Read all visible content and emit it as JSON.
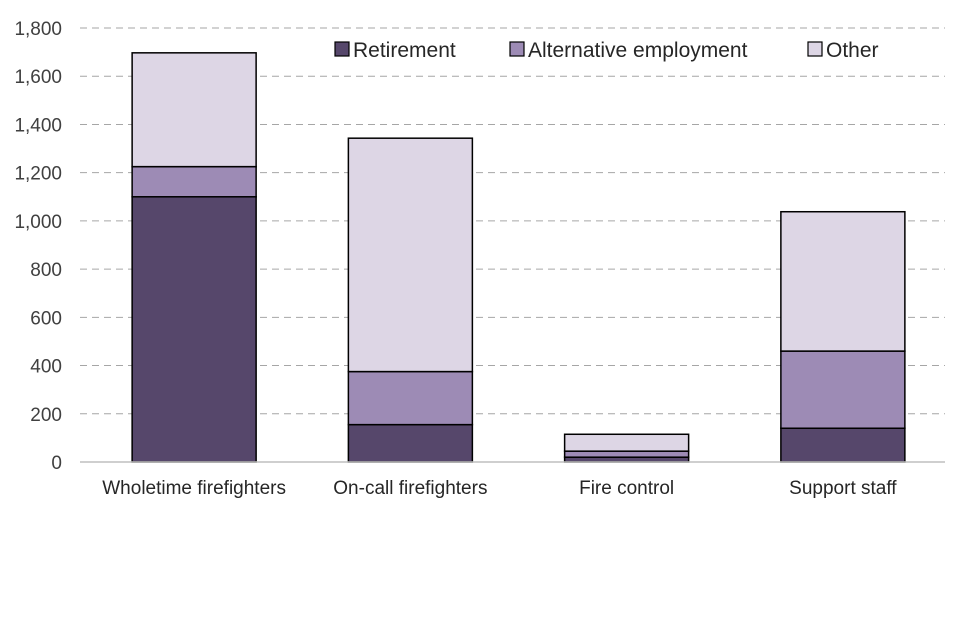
{
  "chart_data": {
    "type": "bar",
    "stacked": true,
    "title": "",
    "xlabel": "",
    "ylabel": "",
    "ylim": [
      0,
      1800
    ],
    "yticks": [
      0,
      200,
      400,
      600,
      800,
      1000,
      1200,
      1400,
      1600,
      1800
    ],
    "ytick_labels": [
      "0",
      "200",
      "400",
      "600",
      "800",
      "1,000",
      "1,200",
      "1,400",
      "1,600",
      "1,800"
    ],
    "grid": true,
    "legend_position": "top-right",
    "categories": [
      "Wholetime firefighters",
      "On-call firefighters",
      "Fire control",
      "Support staff"
    ],
    "series": [
      {
        "name": "Retirement",
        "color": "#56476b",
        "values": [
          1100,
          155,
          20,
          140
        ]
      },
      {
        "name": "Alternative employment",
        "color": "#9d8bb5",
        "values": [
          125,
          220,
          25,
          320
        ]
      },
      {
        "name": "Other",
        "color": "#ddd6e5",
        "values": [
          472,
          968,
          70,
          578
        ]
      }
    ]
  }
}
